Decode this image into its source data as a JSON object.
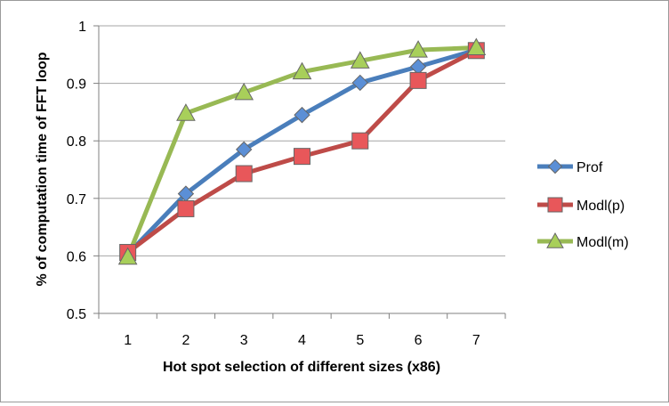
{
  "chart_data": {
    "type": "line",
    "title": "",
    "xlabel": "Hot spot selection of different sizes (x86)",
    "ylabel": "% of computation time of FFT loop",
    "categories": [
      "1",
      "2",
      "3",
      "4",
      "5",
      "6",
      "7"
    ],
    "ylim": [
      0.5,
      1
    ],
    "yticks": [
      "0.5",
      "0.6",
      "0.7",
      "0.8",
      "0.9",
      "1"
    ],
    "grid": true,
    "legend_position": "right",
    "series": [
      {
        "name": "Prof",
        "marker": "diamond",
        "color": "#4a7ebb",
        "marker_color": "#5b8fd6",
        "values": [
          0.603,
          0.708,
          0.785,
          0.845,
          0.901,
          0.929,
          0.958
        ]
      },
      {
        "name": "Modl(p)",
        "marker": "square",
        "color": "#be4b48",
        "marker_color": "#e8575a",
        "values": [
          0.606,
          0.682,
          0.743,
          0.773,
          0.8,
          0.905,
          0.957
        ]
      },
      {
        "name": "Modl(m)",
        "marker": "triangle",
        "color": "#98b954",
        "marker_color": "#a8cf5a",
        "values": [
          0.598,
          0.848,
          0.884,
          0.92,
          0.939,
          0.958,
          0.962
        ]
      }
    ]
  }
}
